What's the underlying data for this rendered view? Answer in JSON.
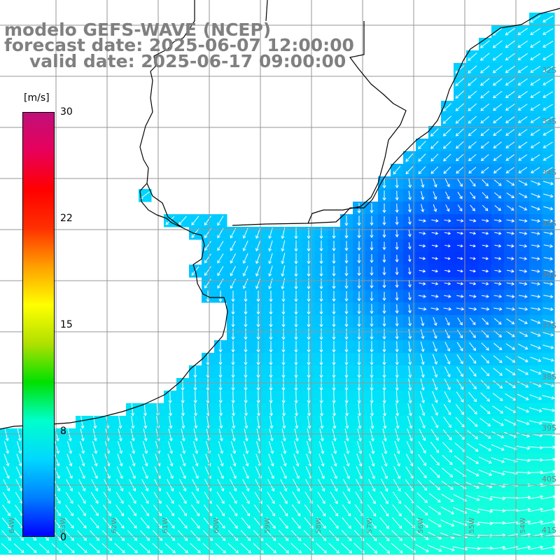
{
  "title": {
    "line1": "modelo GEFS-WAVE (NCEP)",
    "line2": "forecast date: 2025-06-07 12:00:00",
    "line3": "valid date: 2025-06-17 09:00:00"
  },
  "colorbar": {
    "unit": "[m/s]",
    "ticks": [
      "30",
      "22",
      "15",
      "8",
      "0"
    ],
    "colors": [
      "#0000ff",
      "#0080ff",
      "#00d8ff",
      "#00ffcc",
      "#00e000",
      "#b0e000",
      "#ffff00",
      "#ffa000",
      "#ff3000",
      "#ff0000",
      "#e8005a",
      "#c0107a"
    ]
  },
  "grid": {
    "lat_labels": [
      "32S",
      "33S",
      "34S",
      "35S",
      "36S",
      "37S",
      "38S",
      "39S",
      "40S",
      "41S"
    ],
    "lon_labels": [
      "64W",
      "63W",
      "62W",
      "61W",
      "60W",
      "59W",
      "58W",
      "57W",
      "56W",
      "55W",
      "54W"
    ]
  },
  "colors": {
    "ocean_low": "#0a45ff",
    "ocean_mid": "#0a96ff",
    "ocean_high": "#14e6ff",
    "land": "#ffffff",
    "title_text": "#808080",
    "grid_line": "#969696",
    "arrow": "#ffffff"
  }
}
